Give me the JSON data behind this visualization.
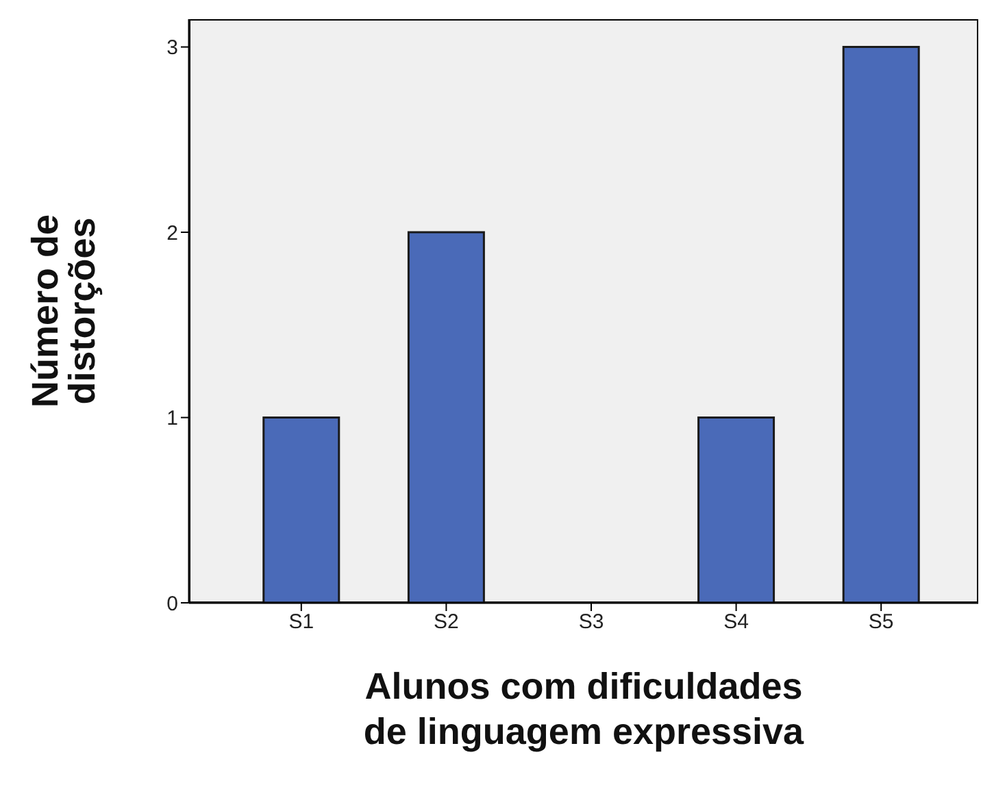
{
  "chart_data": {
    "type": "bar",
    "xlabel": "Alunos com dificuldades de linguagem expressiva",
    "ylabel": "Número de distorções",
    "categories": [
      "S1",
      "S2",
      "S3",
      "S4",
      "S5"
    ],
    "values": [
      1,
      2,
      0,
      1,
      3
    ],
    "color": "#4a6ab8",
    "ylim": [
      0,
      3.15
    ],
    "yticks": [
      0,
      1,
      2,
      3
    ],
    "grid": false,
    "legend": false
  }
}
